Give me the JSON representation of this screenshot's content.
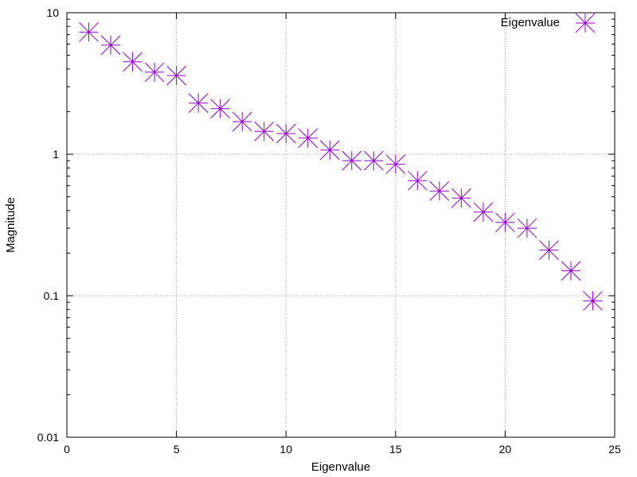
{
  "chart_data": {
    "type": "scatter",
    "title": "",
    "xlabel": "Eigenvalue",
    "ylabel": "Magnitude",
    "xlim": [
      0,
      25
    ],
    "ylim": [
      0.01,
      10
    ],
    "y_scale": "log",
    "grid": true,
    "legend": {
      "entries": [
        "Eigenvalue"
      ],
      "placement": "top-right"
    },
    "x_ticks": [
      {
        "value": 0,
        "label": "0"
      },
      {
        "value": 5,
        "label": "5"
      },
      {
        "value": 10,
        "label": "10"
      },
      {
        "value": 15,
        "label": "15"
      },
      {
        "value": 20,
        "label": "20"
      },
      {
        "value": 25,
        "label": "25"
      }
    ],
    "y_ticks": [
      {
        "value": 0.01,
        "label": "0.01"
      },
      {
        "value": 0.1,
        "label": "0.1"
      },
      {
        "value": 1,
        "label": "1"
      },
      {
        "value": 10,
        "label": "10"
      }
    ],
    "marker_color": "#9400d3",
    "series": [
      {
        "name": "Eigenvalue",
        "marker": "asterisk",
        "x": [
          1,
          2,
          3,
          4,
          5,
          6,
          7,
          8,
          9,
          10,
          11,
          12,
          13,
          14,
          15,
          16,
          17,
          18,
          19,
          20,
          21,
          22,
          23,
          24
        ],
        "y": [
          7.3,
          5.9,
          4.5,
          3.8,
          3.6,
          2.3,
          2.1,
          1.7,
          1.45,
          1.4,
          1.3,
          1.07,
          0.9,
          0.9,
          0.85,
          0.65,
          0.55,
          0.49,
          0.39,
          0.33,
          0.3,
          0.21,
          0.15,
          0.092
        ]
      }
    ]
  }
}
